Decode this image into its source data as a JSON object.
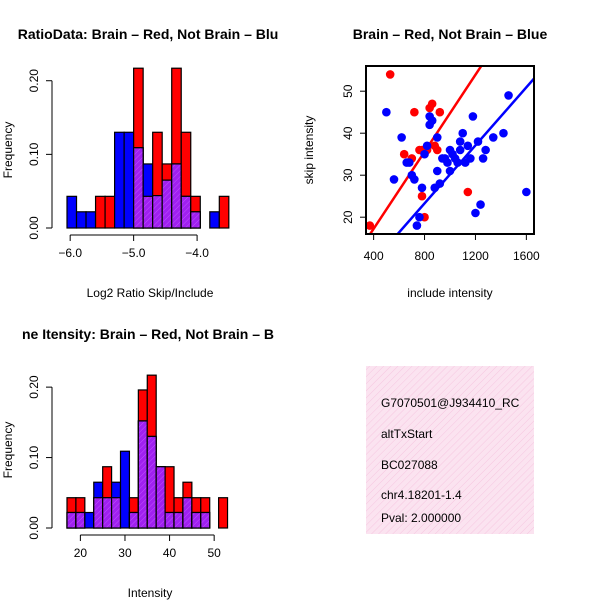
{
  "colors": {
    "brain": "#ff0000",
    "not_brain": "#0000ff",
    "overlap": "#a020f0",
    "panel_bg": "#fbe3f0",
    "pval": "#b22222"
  },
  "chart_data": [
    {
      "type": "bar",
      "title": "RatioData: Brain – Red, Not Brain – Blu",
      "xlabel": "Log2 Ratio Skip/Include",
      "ylabel": "Frequency",
      "xlim": [
        -6.05,
        -3.45
      ],
      "ylim": [
        0,
        0.22
      ],
      "xticks": [
        -6.0,
        -5.0,
        -4.0
      ],
      "xtick_labels": [
        "−6.0",
        "−5.0",
        "−4.0"
      ],
      "yticks": [
        0.0,
        0.1,
        0.2
      ],
      "ytick_labels": [
        "0.00",
        "0.10",
        "0.20"
      ],
      "bin_edges": [
        -6.05,
        -5.9,
        -5.75,
        -5.6,
        -5.45,
        -5.3,
        -5.15,
        -5.0,
        -4.85,
        -4.7,
        -4.55,
        -4.4,
        -4.25,
        -4.1,
        -3.95,
        -3.8,
        -3.65,
        -3.5
      ],
      "series": [
        {
          "name": "Brain",
          "values": [
            0,
            0,
            0,
            0.043,
            0.043,
            0,
            0,
            0.217,
            0.043,
            0.13,
            0.087,
            0.217,
            0.13,
            0.043,
            0,
            0,
            0.043
          ]
        },
        {
          "name": "Not Brain",
          "values": [
            0.043,
            0.022,
            0.022,
            0,
            0,
            0.13,
            0.13,
            0.109,
            0.087,
            0.044,
            0.065,
            0.087,
            0.043,
            0.022,
            0,
            0.022,
            0
          ]
        }
      ]
    },
    {
      "type": "scatter",
      "title": "Brain – Red, Not Brain – Blue",
      "xlabel": "include intensity",
      "ylabel": "skip intensity",
      "xlim": [
        340,
        1660
      ],
      "ylim": [
        16,
        56
      ],
      "xticks": [
        400,
        800,
        1200,
        1600
      ],
      "xtick_labels": [
        "400",
        "800",
        "1200",
        "1600"
      ],
      "yticks": [
        20,
        30,
        40,
        50
      ],
      "ytick_labels": [
        "20",
        "30",
        "40",
        "50"
      ],
      "series": [
        {
          "name": "Brain",
          "points": [
            [
              370,
              18
            ],
            [
              530,
              54
            ],
            [
              640,
              35
            ],
            [
              720,
              45
            ],
            [
              760,
              36
            ],
            [
              780,
              36
            ],
            [
              800,
              20
            ],
            [
              820,
              36
            ],
            [
              840,
              46
            ],
            [
              860,
              47
            ],
            [
              880,
              37
            ],
            [
              900,
              36
            ],
            [
              920,
              45
            ],
            [
              1140,
              26
            ],
            [
              780,
              25
            ],
            [
              700,
              34
            ]
          ]
        },
        {
          "name": "Not Brain",
          "points": [
            [
              500,
              45
            ],
            [
              560,
              29
            ],
            [
              620,
              39
            ],
            [
              660,
              33
            ],
            [
              680,
              33
            ],
            [
              700,
              30
            ],
            [
              720,
              29
            ],
            [
              740,
              18
            ],
            [
              760,
              20
            ],
            [
              780,
              27
            ],
            [
              800,
              35
            ],
            [
              820,
              37
            ],
            [
              840,
              44
            ],
            [
              840,
              42
            ],
            [
              860,
              43
            ],
            [
              880,
              27
            ],
            [
              900,
              39
            ],
            [
              920,
              28
            ],
            [
              940,
              34
            ],
            [
              960,
              34
            ],
            [
              980,
              33
            ],
            [
              1000,
              36
            ],
            [
              1020,
              35
            ],
            [
              1040,
              34
            ],
            [
              1060,
              33
            ],
            [
              1080,
              38
            ],
            [
              1100,
              40
            ],
            [
              1120,
              33
            ],
            [
              1140,
              37
            ],
            [
              1160,
              34
            ],
            [
              1180,
              44
            ],
            [
              1200,
              21
            ],
            [
              1220,
              38
            ],
            [
              1240,
              23
            ],
            [
              1260,
              34
            ],
            [
              1280,
              36
            ],
            [
              1340,
              39
            ],
            [
              1420,
              40
            ],
            [
              1460,
              49
            ],
            [
              1600,
              26
            ],
            [
              1000,
              31
            ],
            [
              1080,
              36
            ],
            [
              900,
              31
            ]
          ]
        }
      ],
      "lines": [
        {
          "name": "Brain fit",
          "from": [
            340,
            14.5
          ],
          "to": [
            1660,
            75
          ]
        },
        {
          "name": "Not Brain fit",
          "from": [
            340,
            7.4
          ],
          "to": [
            1660,
            53
          ]
        }
      ]
    },
    {
      "type": "bar",
      "title": "ne Itensity: Brain – Red, Not Brain – B",
      "xlabel": "Intensity",
      "ylabel": "Frequency",
      "xlim": [
        17,
        54
      ],
      "ylim": [
        0,
        0.23
      ],
      "xticks": [
        20,
        30,
        40,
        50
      ],
      "xtick_labels": [
        "20",
        "30",
        "40",
        "50"
      ],
      "yticks": [
        0.0,
        0.1,
        0.2
      ],
      "ytick_labels": [
        "0.00",
        "0.10",
        "0.20"
      ],
      "bin_edges": [
        17,
        19,
        21,
        23,
        25,
        27,
        29,
        31,
        33,
        35,
        37,
        39,
        41,
        43,
        45,
        47,
        49,
        51,
        53
      ],
      "series": [
        {
          "name": "Brain",
          "values": [
            0.043,
            0.043,
            0,
            0.043,
            0.087,
            0.043,
            0,
            0.043,
            0.196,
            0.217,
            0.087,
            0.087,
            0.043,
            0.065,
            0.043,
            0.043,
            0,
            0.043
          ]
        },
        {
          "name": "Not Brain",
          "values": [
            0.022,
            0.022,
            0.022,
            0.065,
            0.043,
            0.065,
            0.109,
            0.022,
            0.152,
            0.13,
            0.087,
            0.022,
            0.022,
            0.043,
            0.022,
            0.022,
            0,
            0
          ]
        }
      ]
    }
  ],
  "info_panel": {
    "line1": "G7070501@J934410_RC",
    "line2": "altTxStart",
    "line3": "BC027088",
    "line4": "chr4.18201-1.4",
    "pval": "Pval: 2.000000"
  }
}
